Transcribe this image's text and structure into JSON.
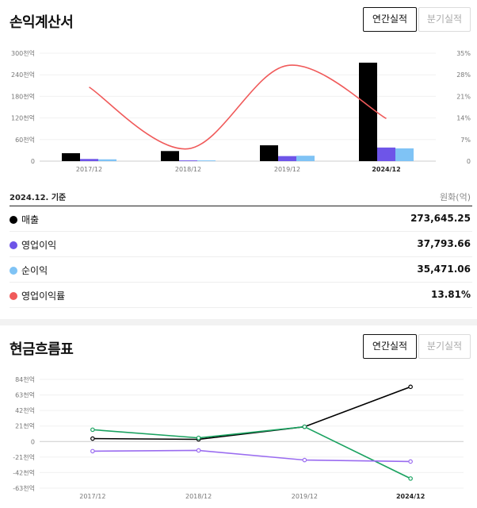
{
  "income": {
    "title": "손익계산서",
    "toggle": {
      "annual": "연간실적",
      "quarterly": "분기실적"
    },
    "basis": "2024.12. 기준",
    "unit": "원화(억)",
    "rows": [
      {
        "label": "매출",
        "value": "273,645.25",
        "color": "#000000"
      },
      {
        "label": "영업이익",
        "value": "37,793.66",
        "color": "#6e55e8"
      },
      {
        "label": "순이익",
        "value": "35,471.06",
        "color": "#7fc3f5"
      },
      {
        "label": "영업이익률",
        "value": "13.81%",
        "color": "#f05a5a"
      }
    ]
  },
  "cashflow": {
    "title": "현금흐름표",
    "toggle": {
      "annual": "연간실적",
      "quarterly": "분기실적"
    }
  },
  "chart_data": [
    {
      "type": "bar",
      "categories": [
        "2017/12",
        "2018/12",
        "2019/12",
        "2024/12"
      ],
      "highlight_category": "2024/12",
      "y_ticks": [
        "300천억",
        "240천억",
        "180천억",
        "120천억",
        "60천억",
        "0"
      ],
      "y_tick_values": [
        300000,
        240000,
        180000,
        120000,
        60000,
        0
      ],
      "ylim": [
        0,
        300000
      ],
      "y2_ticks": [
        "35%",
        "28%",
        "21%",
        "14%",
        "7%",
        "0"
      ],
      "y2_tick_values": [
        35,
        28,
        21,
        14,
        7,
        0
      ],
      "y2lim": [
        0,
        35
      ],
      "series": [
        {
          "name": "매출",
          "axis": "left",
          "type": "bar",
          "color": "#000000",
          "values": [
            22000,
            28000,
            44000,
            273645.25
          ]
        },
        {
          "name": "영업이익",
          "axis": "left",
          "type": "bar",
          "color": "#6e55e8",
          "values": [
            6000,
            2000,
            14000,
            37793.66
          ]
        },
        {
          "name": "순이익",
          "axis": "left",
          "type": "bar",
          "color": "#7fc3f5",
          "values": [
            5000,
            2000,
            15000,
            35471.06
          ]
        },
        {
          "name": "영업이익률",
          "axis": "right",
          "type": "line",
          "color": "#f05a5a",
          "values": [
            24,
            4,
            31,
            13.81
          ]
        }
      ]
    },
    {
      "type": "line",
      "categories": [
        "2017/12",
        "2018/12",
        "2019/12",
        "2024/12"
      ],
      "highlight_category": "2024/12",
      "y_ticks": [
        "84천억",
        "63천억",
        "42천억",
        "21천억",
        "0",
        "-21천억",
        "-42천억",
        "-63천억"
      ],
      "y_tick_values": [
        84000,
        63000,
        42000,
        21000,
        0,
        -21000,
        -42000,
        -63000
      ],
      "ylim": [
        -63000,
        84000
      ],
      "series": [
        {
          "color": "#000000",
          "values": [
            4000,
            3000,
            20000,
            74000
          ]
        },
        {
          "color": "#1aa260",
          "values": [
            16000,
            5000,
            20000,
            -50000
          ]
        },
        {
          "color": "#9a6cf0",
          "values": [
            -13000,
            -12000,
            -25000,
            -27000
          ]
        }
      ]
    }
  ]
}
